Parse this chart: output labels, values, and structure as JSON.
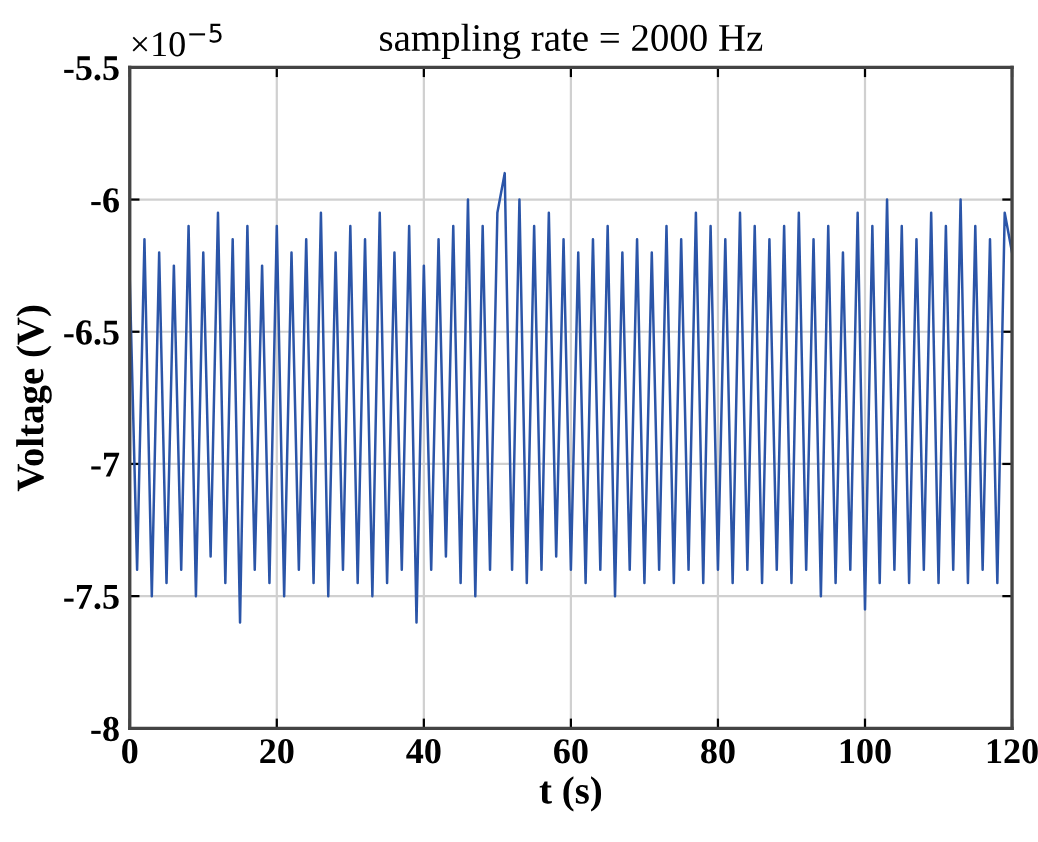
{
  "chart_data": {
    "type": "line",
    "title": "sampling rate = 2000 Hz",
    "xlabel": "t (s)",
    "ylabel": "Voltage (V)",
    "annotations": [
      "×10$^{−5}$"
    ],
    "x": [
      0,
      1,
      2,
      3,
      4,
      5,
      6,
      7,
      8,
      9,
      10,
      11,
      12,
      13,
      14,
      15,
      16,
      17,
      18,
      19,
      20,
      21,
      22,
      23,
      24,
      25,
      26,
      27,
      28,
      29,
      30,
      31,
      32,
      33,
      34,
      35,
      36,
      37,
      38,
      39,
      40,
      41,
      42,
      43,
      44,
      45,
      46,
      47,
      48,
      49,
      50,
      51,
      52,
      53,
      54,
      55,
      56,
      57,
      58,
      59,
      60,
      61,
      62,
      63,
      64,
      65,
      66,
      67,
      68,
      69,
      70,
      71,
      72,
      73,
      74,
      75,
      76,
      77,
      78,
      79,
      80,
      81,
      82,
      83,
      84,
      85,
      86,
      87,
      88,
      89,
      90,
      91,
      92,
      93,
      94,
      95,
      96,
      97,
      98,
      99,
      100,
      101,
      102,
      103,
      104,
      105,
      106,
      107,
      108,
      109,
      110,
      111,
      112,
      113,
      114,
      115,
      116,
      117,
      118,
      119,
      120
    ],
    "series": [
      {
        "color": "#2b55a8",
        "values": [
          -6.3,
          -7.4,
          -6.15,
          -7.5,
          -6.2,
          -7.45,
          -6.25,
          -7.4,
          -6.1,
          -7.5,
          -6.2,
          -7.35,
          -6.05,
          -7.45,
          -6.15,
          -7.6,
          -6.1,
          -7.4,
          -6.25,
          -7.45,
          -6.1,
          -7.5,
          -6.2,
          -7.4,
          -6.15,
          -7.45,
          -6.05,
          -7.5,
          -6.2,
          -7.4,
          -6.1,
          -7.45,
          -6.15,
          -7.5,
          -6.05,
          -7.45,
          -6.2,
          -7.4,
          -6.1,
          -7.6,
          -6.25,
          -7.4,
          -6.15,
          -7.35,
          -6.1,
          -7.45,
          -6.0,
          -7.5,
          -6.1,
          -7.4,
          -6.05,
          -5.9,
          -7.4,
          -6.0,
          -7.45,
          -6.1,
          -7.4,
          -6.05,
          -7.35,
          -6.15,
          -7.4,
          -6.2,
          -7.45,
          -6.15,
          -7.4,
          -6.1,
          -7.5,
          -6.2,
          -7.4,
          -6.15,
          -7.45,
          -6.2,
          -7.4,
          -6.1,
          -7.45,
          -6.15,
          -7.4,
          -6.05,
          -7.45,
          -6.1,
          -7.4,
          -6.15,
          -7.45,
          -6.05,
          -7.4,
          -6.1,
          -7.45,
          -6.15,
          -7.4,
          -6.1,
          -7.45,
          -6.05,
          -7.4,
          -6.15,
          -7.5,
          -6.1,
          -7.45,
          -6.2,
          -7.4,
          -6.05,
          -7.55,
          -6.1,
          -7.45,
          -6.0,
          -7.4,
          -6.1,
          -7.45,
          -6.15,
          -7.4,
          -6.05,
          -7.45,
          -6.1,
          -7.4,
          -6.0,
          -7.45,
          -6.1,
          -7.4,
          -6.15,
          -7.45,
          -6.05,
          -6.2
        ]
      }
    ],
    "xlim": [
      0,
      120
    ],
    "xticks": [
      0,
      20,
      40,
      60,
      80,
      100,
      120
    ],
    "ylim": [
      -8,
      -5.5
    ],
    "yticks": [
      -8,
      -7.5,
      -7,
      -6.5,
      -6,
      -5.5
    ],
    "grid": true
  }
}
